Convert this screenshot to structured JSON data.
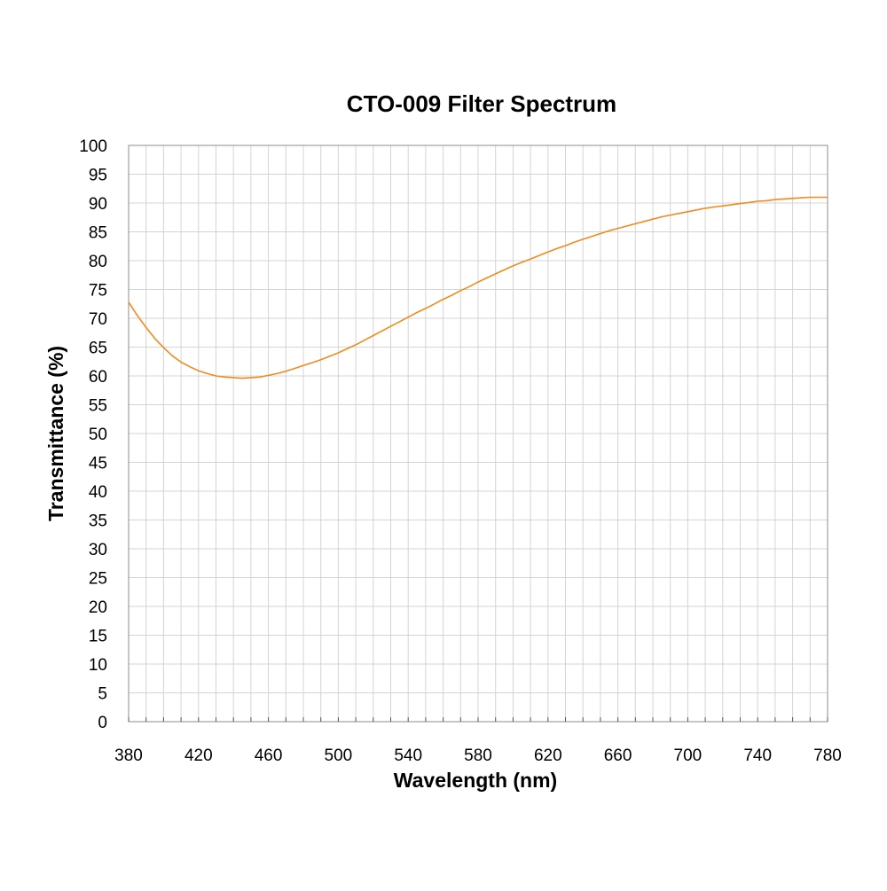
{
  "chart_data": {
    "type": "line",
    "title": "CTO-009 Filter Spectrum",
    "xlabel": "Wavelength (nm)",
    "ylabel": "Transmittance (%)",
    "xlim": [
      380,
      780
    ],
    "ylim": [
      0,
      100
    ],
    "x_ticks": [
      "380",
      "420",
      "460",
      "500",
      "540",
      "580",
      "620",
      "660",
      "700",
      "740",
      "780"
    ],
    "y_ticks": [
      "0",
      "5",
      "10",
      "15",
      "20",
      "25",
      "30",
      "35",
      "40",
      "45",
      "50",
      "55",
      "60",
      "65",
      "70",
      "75",
      "80",
      "85",
      "90",
      "95",
      "100"
    ],
    "grid": true,
    "legend": "none",
    "series": [
      {
        "color": "#f28a1c",
        "x": [
          380,
          385,
          390,
          395,
          400,
          405,
          410,
          415,
          420,
          425,
          430,
          435,
          440,
          445,
          450,
          455,
          460,
          465,
          470,
          475,
          480,
          485,
          490,
          495,
          500,
          505,
          510,
          515,
          520,
          525,
          530,
          535,
          540,
          545,
          550,
          555,
          560,
          565,
          570,
          575,
          580,
          585,
          590,
          595,
          600,
          605,
          610,
          615,
          620,
          625,
          630,
          635,
          640,
          645,
          650,
          655,
          660,
          665,
          670,
          675,
          680,
          685,
          690,
          695,
          700,
          705,
          710,
          715,
          720,
          725,
          730,
          735,
          740,
          745,
          750,
          755,
          760,
          765,
          770,
          775,
          780
        ],
        "y": [
          72.8,
          70.5,
          68.4,
          66.5,
          64.9,
          63.5,
          62.4,
          61.6,
          60.9,
          60.4,
          60.0,
          59.8,
          59.7,
          59.6,
          59.7,
          59.8,
          60.1,
          60.4,
          60.8,
          61.3,
          61.8,
          62.3,
          62.8,
          63.4,
          64.0,
          64.7,
          65.4,
          66.2,
          67.0,
          67.8,
          68.6,
          69.4,
          70.2,
          71.0,
          71.7,
          72.5,
          73.3,
          74.0,
          74.8,
          75.5,
          76.3,
          77.0,
          77.7,
          78.4,
          79.1,
          79.7,
          80.3,
          80.9,
          81.5,
          82.1,
          82.6,
          83.2,
          83.7,
          84.2,
          84.7,
          85.2,
          85.6,
          86.0,
          86.4,
          86.8,
          87.2,
          87.6,
          87.9,
          88.2,
          88.5,
          88.8,
          89.1,
          89.3,
          89.5,
          89.7,
          89.9,
          90.1,
          90.3,
          90.4,
          90.6,
          90.7,
          90.8,
          90.9,
          91.0,
          91.0,
          91.0
        ]
      }
    ]
  }
}
